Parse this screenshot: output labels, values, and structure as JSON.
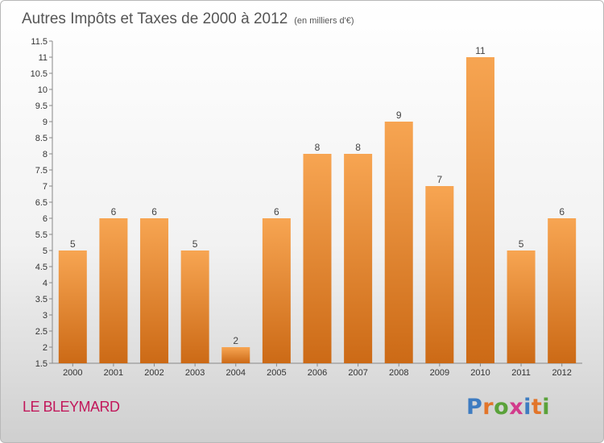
{
  "chart_data": {
    "type": "bar",
    "title": "Autres Impôts et Taxes de 2000 à 2012",
    "subtitle": "(en milliers d'€)",
    "categories": [
      "2000",
      "2001",
      "2002",
      "2003",
      "2004",
      "2005",
      "2006",
      "2007",
      "2008",
      "2009",
      "2010",
      "2011",
      "2012"
    ],
    "values": [
      5,
      6,
      6,
      5,
      2,
      6,
      8,
      8,
      9,
      7,
      11,
      5,
      6
    ],
    "value_labels": [
      "5",
      "6",
      "6",
      "5",
      "2",
      "6",
      "8",
      "8",
      "9",
      "7",
      "11",
      "5",
      "6"
    ],
    "ylim": [
      1.5,
      11.5
    ],
    "yticks": [
      1.5,
      2,
      2.5,
      3,
      3.5,
      4,
      4.5,
      5,
      5.5,
      6,
      6.5,
      7,
      7.5,
      8,
      8.5,
      9,
      9.5,
      10,
      10.5,
      11,
      11.5
    ],
    "ytick_labels": [
      "1.5",
      "2",
      "2.5",
      "3",
      "3.5",
      "4",
      "4.5",
      "5",
      "5.5",
      "6",
      "6.5",
      "7",
      "7.5",
      "8",
      "8.5",
      "9",
      "9.5",
      "10",
      "10.5",
      "11",
      "11.5"
    ],
    "grid": false,
    "bar_color_top": "#f7a552",
    "bar_color_bottom": "#cc6a16"
  },
  "location": "LE BLEYMARD",
  "logo": {
    "text": "Proxiti",
    "letter_colors": [
      "#3e7cc1",
      "#e2752a",
      "#5aa23a",
      "#d23c8c",
      "#3e7cc1",
      "#e2752a",
      "#5aa23a"
    ]
  }
}
